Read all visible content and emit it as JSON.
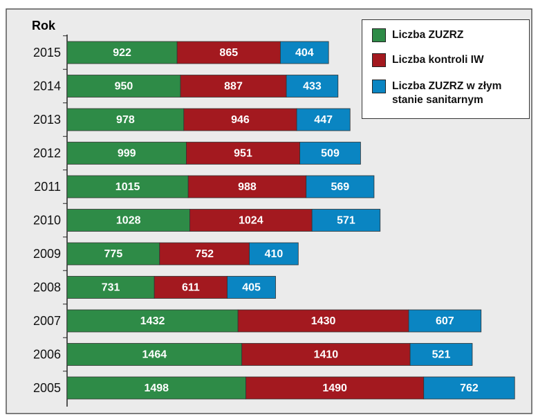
{
  "chart_data": {
    "type": "stacked-barh",
    "y_label": "Rok",
    "categories": [
      "2015",
      "2014",
      "2013",
      "2012",
      "2011",
      "2010",
      "2009",
      "2008",
      "2007",
      "2006",
      "2005"
    ],
    "series": [
      {
        "name": "Liczba ZUZRZ",
        "color": "#2e8b47",
        "values": [
          922,
          950,
          978,
          999,
          1015,
          1028,
          775,
          731,
          1432,
          1464,
          1498
        ]
      },
      {
        "name": "Liczba kontroli IW",
        "color": "#a3191f",
        "values": [
          865,
          887,
          946,
          951,
          988,
          1024,
          752,
          611,
          1430,
          1410,
          1490
        ]
      },
      {
        "name": "Liczba ZUZRZ w złym stanie sanitarnym",
        "color": "#0a85c2",
        "values": [
          404,
          433,
          447,
          509,
          569,
          571,
          410,
          405,
          607,
          521,
          762
        ]
      }
    ],
    "legend": "upper right"
  }
}
